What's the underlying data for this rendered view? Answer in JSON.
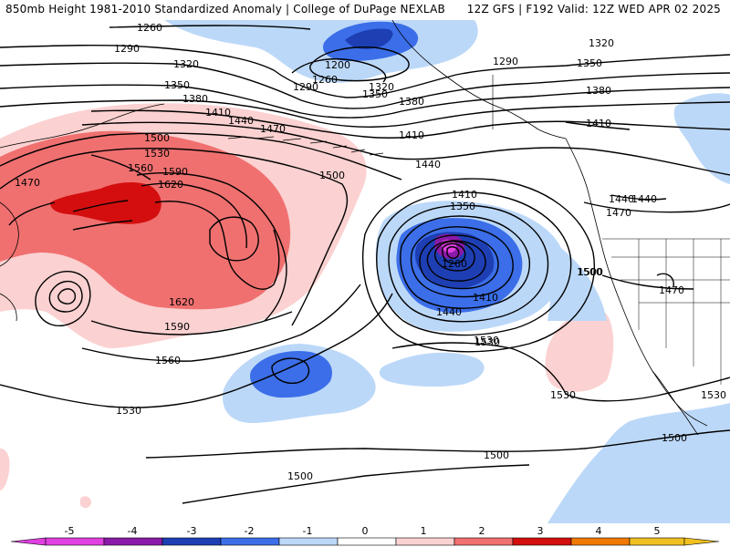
{
  "header": {
    "left": "850mb Height 1981-2010 Standardized Anomaly | College of DuPage NEXLAB",
    "right": "12Z GFS | F192 Valid: 12Z WED APR 02 2025"
  },
  "contour_labels": [
    {
      "id": "l1260a",
      "text": "1260"
    },
    {
      "id": "l1290a",
      "text": "1290"
    },
    {
      "id": "l1320a",
      "text": "1320"
    },
    {
      "id": "l1350a",
      "text": "1350"
    },
    {
      "id": "l1380a",
      "text": "1380"
    },
    {
      "id": "l1410a",
      "text": "1410"
    },
    {
      "id": "l1440a",
      "text": "1440"
    },
    {
      "id": "l1470a",
      "text": "1470"
    },
    {
      "id": "l1500a",
      "text": "1500"
    },
    {
      "id": "l1530a",
      "text": "1530"
    },
    {
      "id": "l1560a",
      "text": "1560"
    },
    {
      "id": "l1590a",
      "text": "1590"
    },
    {
      "id": "l1620a",
      "text": "1620"
    },
    {
      "id": "l1470b",
      "text": "1470"
    },
    {
      "id": "l1620b",
      "text": "1620"
    },
    {
      "id": "l1590b",
      "text": "1590"
    },
    {
      "id": "l1560b",
      "text": "1560"
    },
    {
      "id": "l1530b",
      "text": "1530"
    },
    {
      "id": "l1500b",
      "text": "1500"
    },
    {
      "id": "l1200a",
      "text": "1200"
    },
    {
      "id": "l1260b",
      "text": "1260"
    },
    {
      "id": "l1290b",
      "text": "1290"
    },
    {
      "id": "l1320b",
      "text": "1320"
    },
    {
      "id": "l1350b",
      "text": "1350"
    },
    {
      "id": "l1380b",
      "text": "1380"
    },
    {
      "id": "l1410b",
      "text": "1410"
    },
    {
      "id": "l1290c",
      "text": "1290"
    },
    {
      "id": "l1320c",
      "text": "1320"
    },
    {
      "id": "l1350c",
      "text": "1350"
    },
    {
      "id": "l1380c",
      "text": "1380"
    },
    {
      "id": "l1410c",
      "text": "1410"
    },
    {
      "id": "l1440b",
      "text": "1440"
    },
    {
      "id": "l1470c",
      "text": "1470"
    },
    {
      "id": "l1500c",
      "text": "1500"
    },
    {
      "id": "l1530c",
      "text": "1530"
    },
    {
      "id": "l1440c",
      "text": "1440"
    },
    {
      "id": "l1410d",
      "text": "1410"
    },
    {
      "id": "l1350d",
      "text": "1350"
    },
    {
      "id": "l1260c",
      "text": "1260"
    },
    {
      "id": "l1410e",
      "text": "1410"
    },
    {
      "id": "l1440d",
      "text": "1440"
    },
    {
      "id": "l1500d",
      "text": "1500"
    },
    {
      "id": "l1530d",
      "text": "1530"
    },
    {
      "id": "l1530e",
      "text": "1530"
    },
    {
      "id": "l1500e",
      "text": "1500"
    },
    {
      "id": "l1500f",
      "text": "1500"
    },
    {
      "id": "l1470d",
      "text": "1470"
    },
    {
      "id": "l1440e",
      "text": "1440"
    },
    {
      "id": "l1530f",
      "text": "1530"
    },
    {
      "id": "l1500g",
      "text": "1500"
    }
  ],
  "colorbar": {
    "ticks": [
      "-5",
      "-4",
      "-3",
      "-2",
      "-1",
      "0",
      "1",
      "2",
      "3",
      "4",
      "5"
    ],
    "colors": {
      "neg5": "#e040e0",
      "neg4": "#8a1aa8",
      "neg3": "#1e3fb4",
      "neg2": "#3b6ee8",
      "neg1": "#bcd8f8",
      "zero": "#ffffff",
      "pos1": "#fbd1d1",
      "pos2": "#f07070",
      "pos3": "#d40e0e",
      "pos4": "#f07a00",
      "pos5": "#f0c020"
    }
  }
}
